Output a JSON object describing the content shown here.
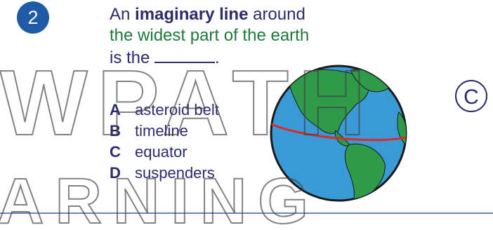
{
  "question": {
    "number": "2",
    "line1_prefix": "An ",
    "line1_bold": "imaginary line",
    "line1_suffix": " around",
    "line2_green": "the widest part of the earth",
    "line3": "is the ",
    "line3_end": "."
  },
  "choices": [
    {
      "letter": "A",
      "text": "asteroid belt"
    },
    {
      "letter": "B",
      "text": "timeline"
    },
    {
      "letter": "C",
      "text": "equator"
    },
    {
      "letter": "D",
      "text": "suspenders"
    }
  ],
  "answer_key": "C",
  "watermark": {
    "line1": "WPATH",
    "line2": "ARNING"
  },
  "colors": {
    "badge": "#1f5aa6",
    "text_navy": "#2d2a6e",
    "text_green": "#1e7a3a",
    "ocean": "#3a9ad6",
    "land": "#2f9a4a",
    "equator": "#e02a2a",
    "rule": "#6f86b8"
  }
}
